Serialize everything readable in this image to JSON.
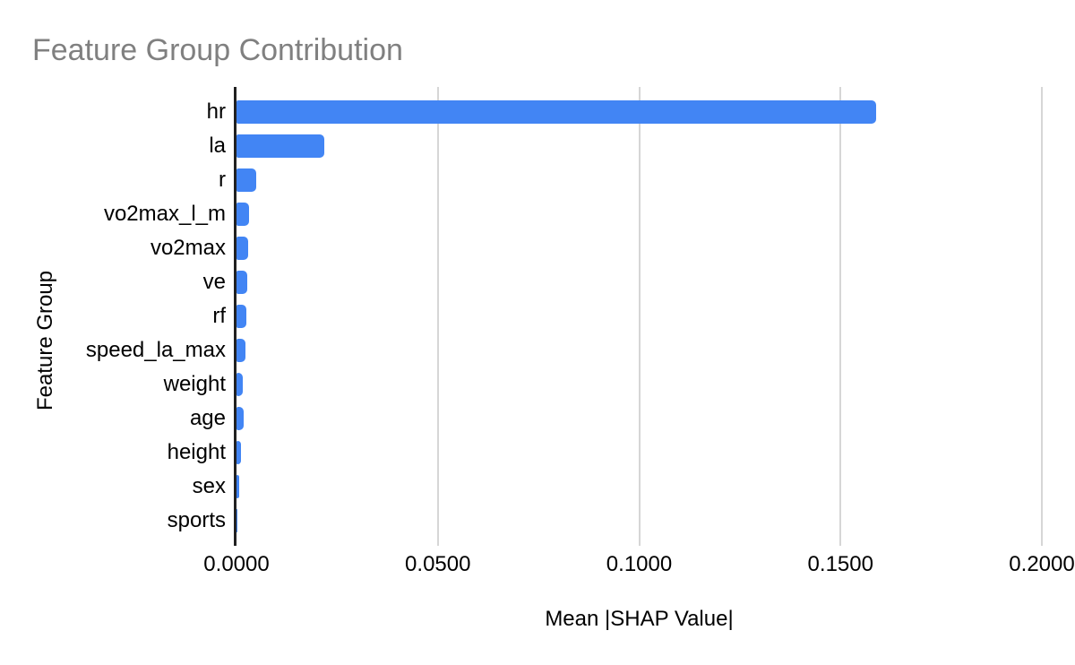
{
  "chart_data": {
    "type": "bar",
    "orientation": "horizontal",
    "title": "Feature Group Contribution",
    "xlabel": "Mean |SHAP Value|",
    "ylabel": "Feature Group",
    "categories": [
      "hr",
      "la",
      "r",
      "vo2max_l_m",
      "vo2max",
      "ve",
      "rf",
      "speed_la_max",
      "weight",
      "age",
      "height",
      "sex",
      "sports"
    ],
    "values": [
      0.1588,
      0.0217,
      0.0048,
      0.0031,
      0.0029,
      0.0027,
      0.0024,
      0.0022,
      0.0015,
      0.0017,
      0.0012,
      0.0007,
      0.0001
    ],
    "xlim": [
      0,
      0.2
    ],
    "xticks": [
      0,
      0.05,
      0.1,
      0.15,
      0.2
    ],
    "xtick_labels": [
      "0.0000",
      "0.0500",
      "0.1000",
      "0.1500",
      "0.2000"
    ],
    "grid": true,
    "legend": "none",
    "colors": {
      "bar": "#4285f4",
      "axis_line": "#212121",
      "gridline": "#d6d6d6",
      "title_text": "#808080",
      "label_text": "#000000",
      "background": "#ffffff"
    }
  }
}
